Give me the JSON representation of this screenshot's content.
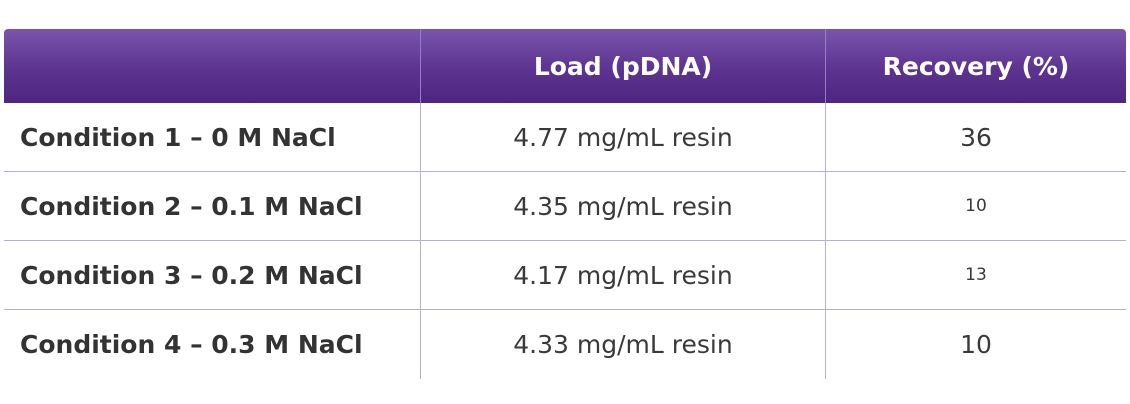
{
  "table": {
    "headers": [
      "",
      "Load (pDNA)",
      "Recovery (%)"
    ],
    "rows": [
      {
        "condition": "Condition 1 – 0 M NaCl",
        "load": "4.77 mg/mL resin",
        "recovery": "36"
      },
      {
        "condition": "Condition 2 – 0.1 M NaCl",
        "load": "4.35 mg/mL resin",
        "recovery": "10"
      },
      {
        "condition": "Condition 3 – 0.2 M NaCl",
        "load": "4.17 mg/mL resin",
        "recovery": "13"
      },
      {
        "condition": "Condition 4 – 0.3 M NaCl",
        "load": "4.33 mg/mL resin",
        "recovery": "10"
      }
    ]
  },
  "colors": {
    "header_bg": "#5c338f",
    "header_text": "#ffffff",
    "grid_line": "#b8aed0"
  }
}
